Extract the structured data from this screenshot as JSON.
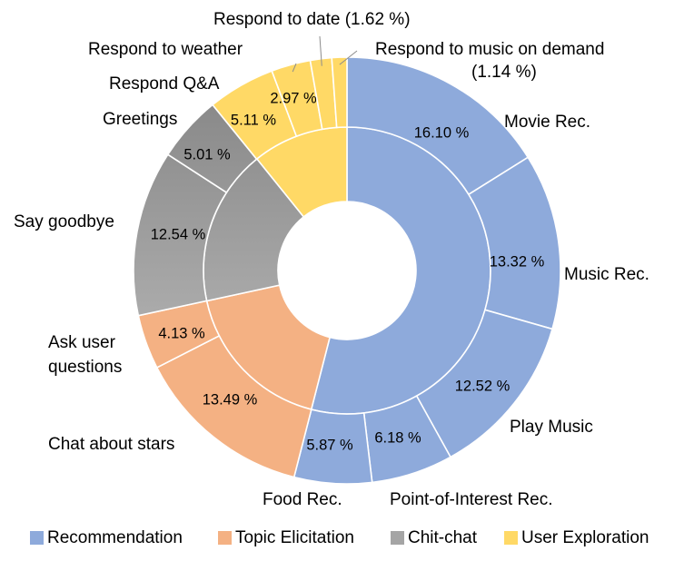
{
  "chart_data": {
    "type": "pie",
    "variant": "sunburst-donut",
    "inner_ring": {
      "categories": [
        "Recommendation",
        "Topic Elicitation",
        "Chit-chat",
        "User Exploration"
      ],
      "values": [
        54.0,
        17.6,
        17.6,
        10.8
      ]
    },
    "outer_ring": {
      "slices": [
        {
          "label": "Movie Rec.",
          "value": 16.1,
          "value_text": "16.10 %",
          "group": "Recommendation"
        },
        {
          "label": "Music Rec.",
          "value": 13.32,
          "value_text": "13.32 %",
          "group": "Recommendation"
        },
        {
          "label": "Play Music",
          "value": 12.52,
          "value_text": "12.52 %",
          "group": "Recommendation"
        },
        {
          "label": "Point-of-Interest Rec.",
          "value": 6.18,
          "value_text": "6.18 %",
          "group": "Recommendation"
        },
        {
          "label": "Food Rec.",
          "value": 5.87,
          "value_text": "5.87 %",
          "group": "Recommendation"
        },
        {
          "label": "Chat about stars",
          "value": 13.49,
          "value_text": "13.49 %",
          "group": "Topic Elicitation"
        },
        {
          "label": [
            "Ask user",
            "questions"
          ],
          "value": 4.13,
          "value_text": "4.13 %",
          "group": "Topic Elicitation"
        },
        {
          "label": "Say goodbye",
          "value": 12.54,
          "value_text": "12.54 %",
          "group": "Chit-chat"
        },
        {
          "label": "Greetings",
          "value": 5.01,
          "value_text": "5.01 %",
          "group": "Chit-chat"
        },
        {
          "label": "Respond Q&A",
          "value": 5.11,
          "value_text": "5.11 %",
          "group": "User Exploration"
        },
        {
          "label": "Respond to weather",
          "value": 2.97,
          "value_text": "2.97 %",
          "group": "User Exploration"
        },
        {
          "label": "Respond to date (1.62 %)",
          "value": 1.62,
          "value_text": "",
          "group": "User Exploration"
        },
        {
          "label": [
            "Respond to music on demand",
            "(1.14 %)"
          ],
          "value": 1.14,
          "value_text": "",
          "group": "User Exploration"
        }
      ]
    },
    "legend": {
      "placement": "bottom",
      "entries": [
        "Recommendation",
        "Topic Elicitation",
        "Chit-chat",
        "User Exploration"
      ]
    },
    "colors": {
      "Recommendation": "#8eaadb",
      "Topic Elicitation": "#f4b183",
      "Chit-chat": "#a5a5a5",
      "User Exploration": "#ffd966"
    }
  }
}
